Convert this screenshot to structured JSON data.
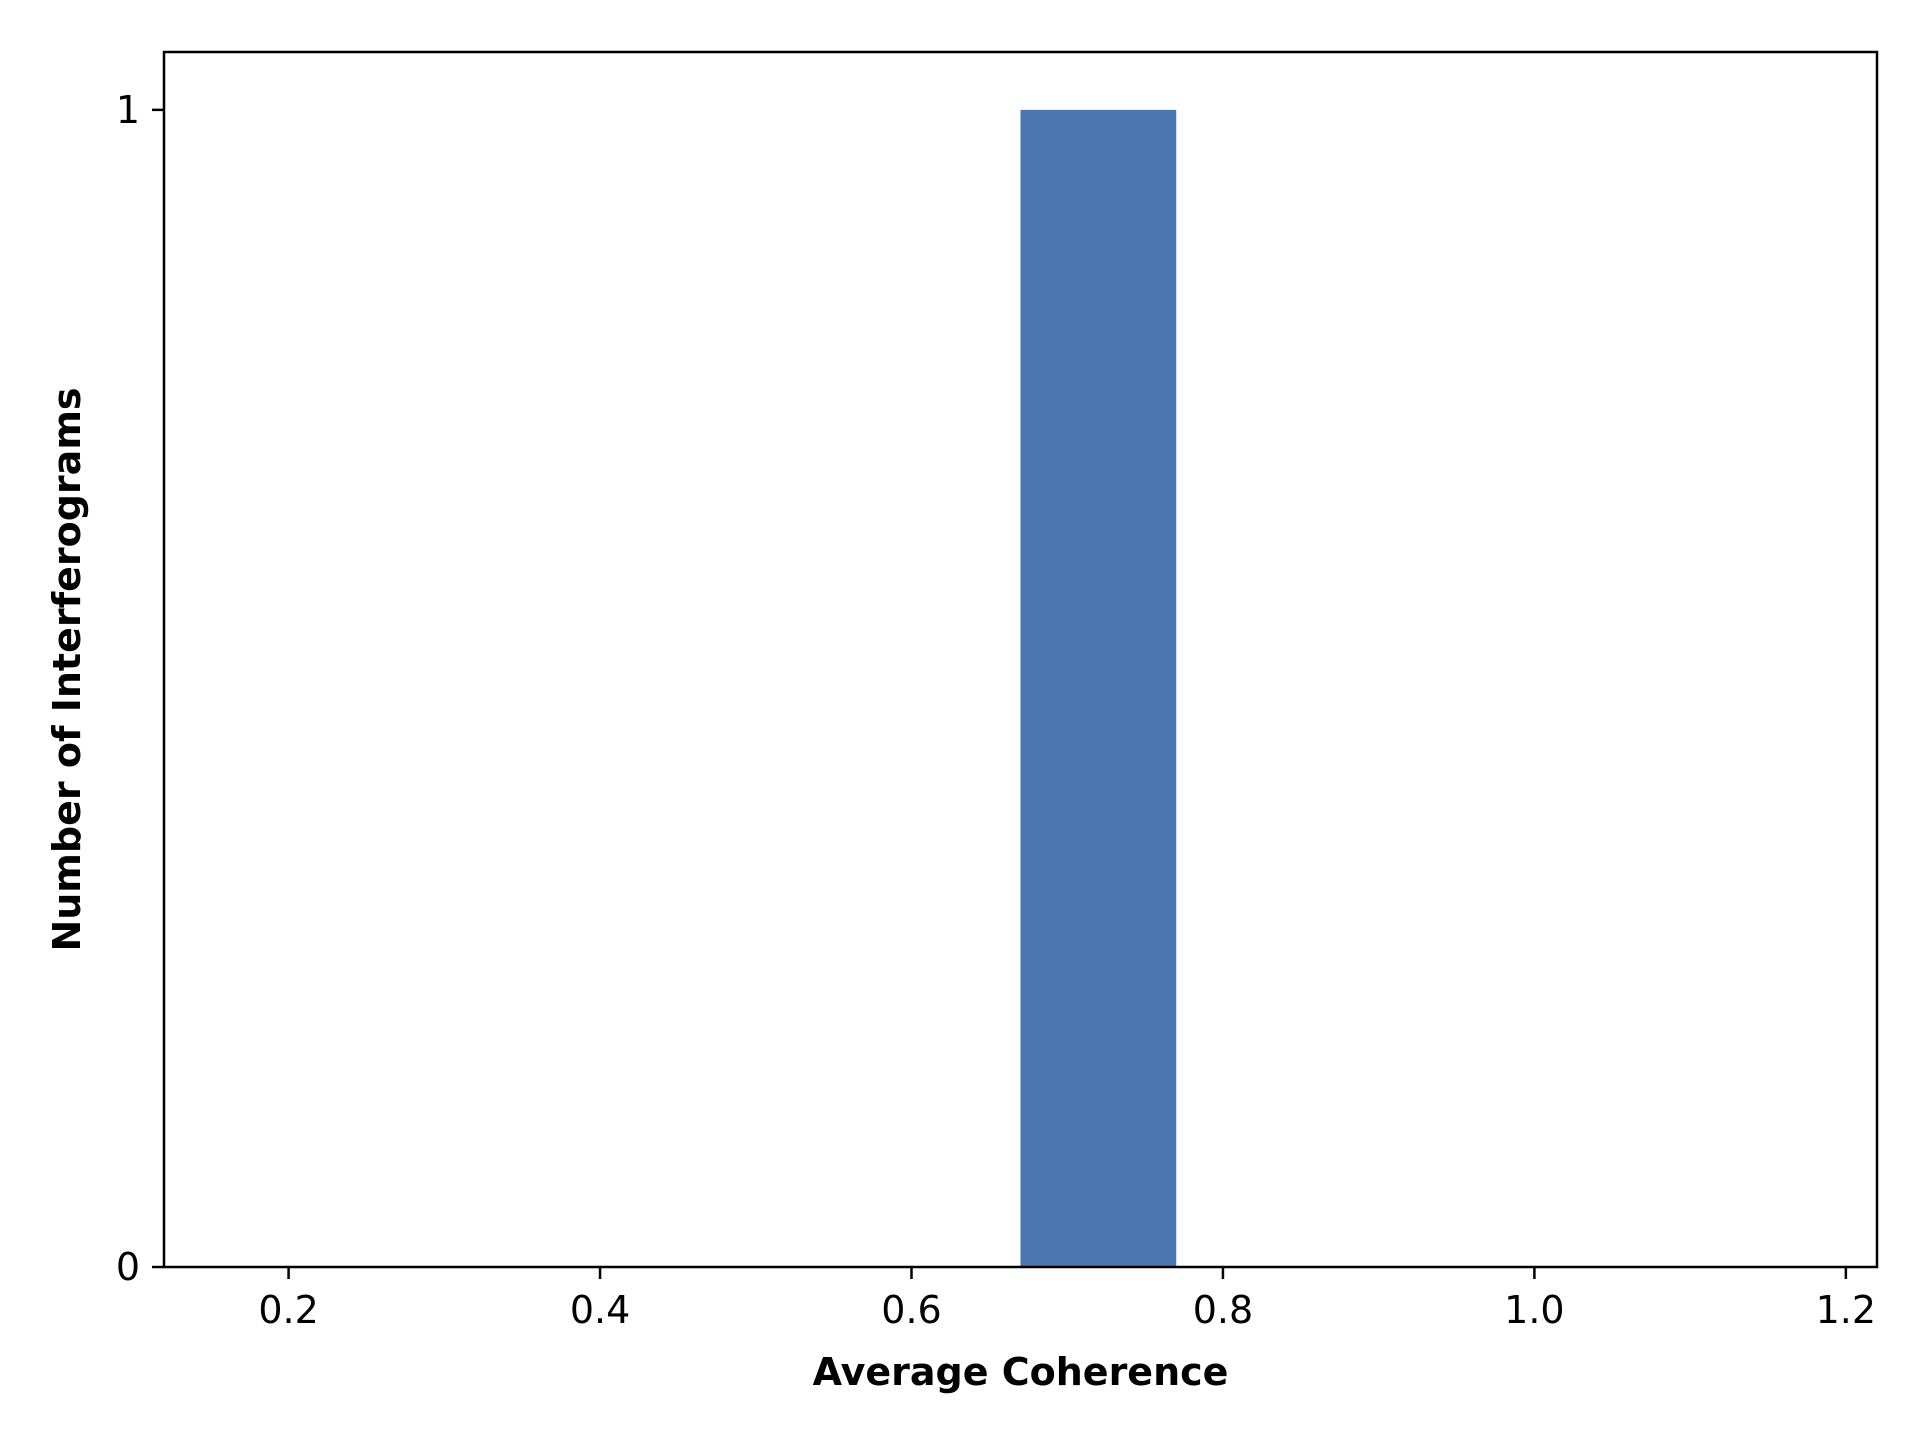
{
  "chart_data": {
    "type": "bar",
    "subtype": "histogram",
    "title": "",
    "xlabel": "Average Coherence",
    "ylabel": "Number of Interferograms",
    "xlim": [
      0.12,
      1.22
    ],
    "ylim": [
      0,
      1.05
    ],
    "xticks": [
      {
        "value": 0.2,
        "label": "0.2"
      },
      {
        "value": 0.4,
        "label": "0.4"
      },
      {
        "value": 0.6,
        "label": "0.6"
      },
      {
        "value": 0.8,
        "label": "0.8"
      },
      {
        "value": 1.0,
        "label": "1.0"
      },
      {
        "value": 1.2,
        "label": "1.2"
      }
    ],
    "yticks": [
      {
        "value": 0,
        "label": "0"
      },
      {
        "value": 1,
        "label": "1"
      }
    ],
    "bins": [
      {
        "x0": 0.67,
        "x1": 0.77,
        "count": 1
      }
    ],
    "grid": false,
    "legend": "none",
    "bar_color": "#4a77b0"
  }
}
